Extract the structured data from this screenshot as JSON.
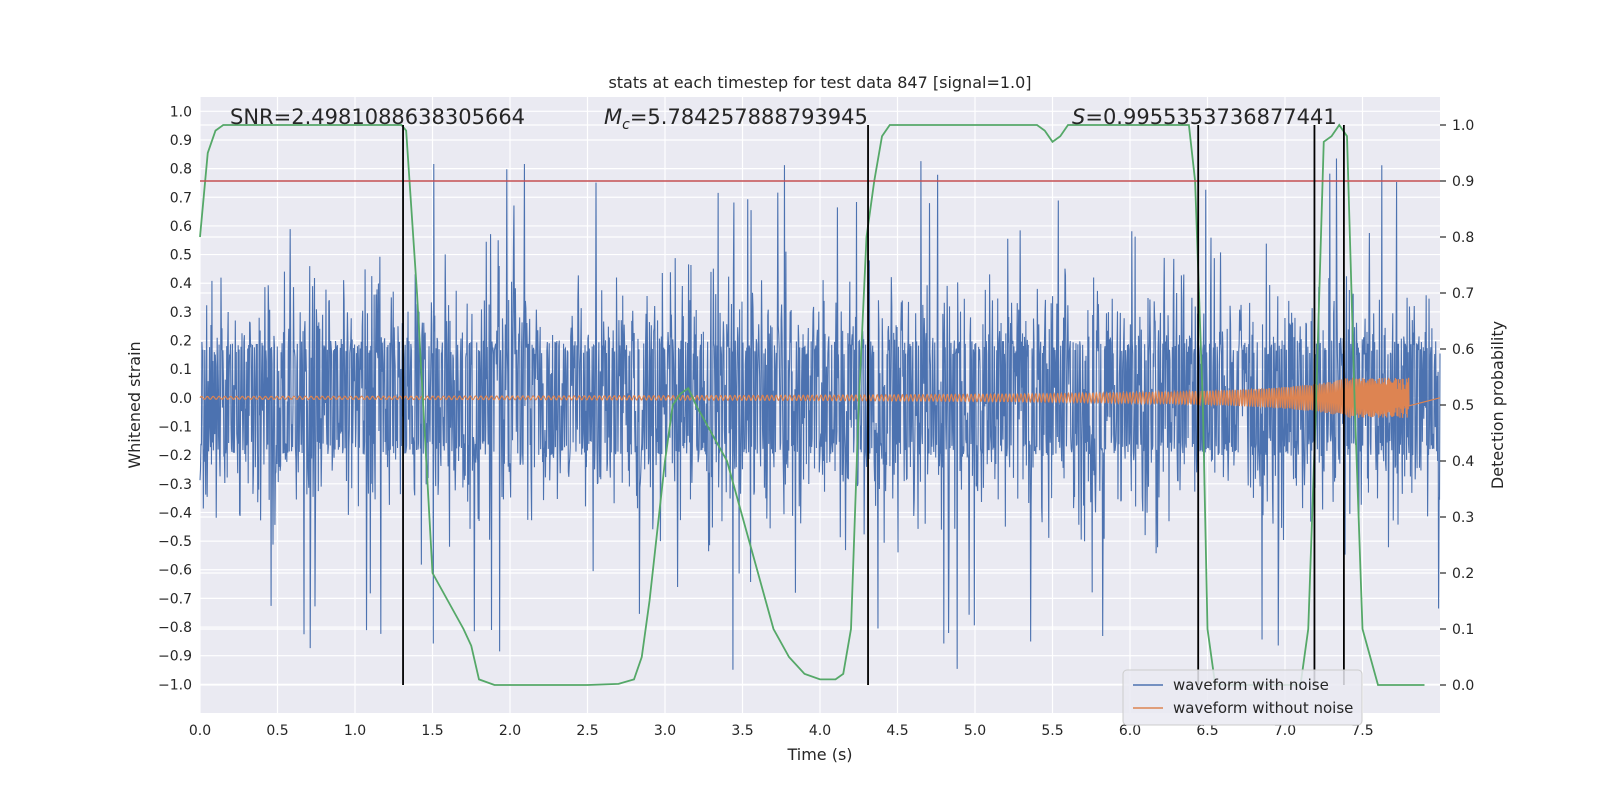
{
  "chart_data": {
    "type": "line",
    "title": "stats at each timestep for test data 847 [signal=1.0]",
    "xlabel": "Time (s)",
    "ylabel": "Whitened strain",
    "ylabel_right": "Detection probability",
    "xlim": [
      0.0,
      8.0
    ],
    "ylim": [
      -1.1,
      1.05
    ],
    "ylim_right": [
      -0.05,
      1.05
    ],
    "x_ticks": [
      0.0,
      0.5,
      1.0,
      1.5,
      2.0,
      2.5,
      3.0,
      3.5,
      4.0,
      4.5,
      5.0,
      5.5,
      6.0,
      6.5,
      7.0,
      7.5
    ],
    "x_tick_labels": [
      "0.0",
      "0.5",
      "1.0",
      "1.5",
      "2.0",
      "2.5",
      "3.0",
      "3.5",
      "4.0",
      "4.5",
      "5.0",
      "5.5",
      "6.0",
      "6.5",
      "7.0",
      "7.5"
    ],
    "y_ticks": [
      -1.0,
      -0.9,
      -0.8,
      -0.7,
      -0.6,
      -0.5,
      -0.4,
      -0.3,
      -0.2,
      -0.1,
      0.0,
      0.1,
      0.2,
      0.3,
      0.4,
      0.5,
      0.6,
      0.7,
      0.8,
      0.9,
      1.0
    ],
    "y_tick_labels": [
      "−1.0",
      "−0.9",
      "−0.8",
      "−0.7",
      "−0.6",
      "−0.5",
      "−0.4",
      "−0.3",
      "−0.2",
      "−0.1",
      "0.0",
      "0.1",
      "0.2",
      "0.3",
      "0.4",
      "0.5",
      "0.6",
      "0.7",
      "0.8",
      "0.9",
      "1.0"
    ],
    "y_ticks_right": [
      0.0,
      0.1,
      0.2,
      0.3,
      0.4,
      0.5,
      0.6,
      0.7,
      0.8,
      0.9,
      1.0
    ],
    "y_tick_labels_right": [
      "0.0",
      "0.1",
      "0.2",
      "0.3",
      "0.4",
      "0.5",
      "0.6",
      "0.7",
      "0.8",
      "0.9",
      "1.0"
    ],
    "grid": true,
    "legend_position": "lower-right",
    "series": [
      {
        "name": "waveform with noise",
        "color": "#4c72b0",
        "axis": "left",
        "style": "dense-noise",
        "x_range": [
          0.0,
          8.0
        ],
        "core_amplitude": 0.15,
        "typical_amplitude": 0.45,
        "peak_range": [
          -0.95,
          0.85
        ]
      },
      {
        "name": "waveform without noise",
        "color": "#dd8452",
        "axis": "left",
        "style": "chirp",
        "x_range": [
          0.0,
          7.8
        ],
        "start_amplitude": 0.005,
        "end_amplitude": 0.07
      },
      {
        "name": "",
        "color": "#55a868",
        "axis": "right",
        "style": "probability",
        "x": [
          0.0,
          0.05,
          0.1,
          0.15,
          0.2,
          0.3,
          0.5,
          0.8,
          1.0,
          1.2,
          1.3,
          1.33,
          1.4,
          1.5,
          1.6,
          1.7,
          1.75,
          1.8,
          1.9,
          2.0,
          2.2,
          2.5,
          2.7,
          2.8,
          2.85,
          2.9,
          3.0,
          3.05,
          3.1,
          3.15,
          3.2,
          3.3,
          3.4,
          3.5,
          3.6,
          3.7,
          3.8,
          3.9,
          4.0,
          4.1,
          4.15,
          4.2,
          4.25,
          4.3,
          4.35,
          4.4,
          4.45,
          4.5,
          4.7,
          5.0,
          5.3,
          5.4,
          5.45,
          5.5,
          5.55,
          5.6,
          5.7,
          6.0,
          6.3,
          6.38,
          6.42,
          6.47,
          6.5,
          6.55,
          6.6,
          6.7,
          6.8,
          6.9,
          7.0,
          7.1,
          7.15,
          7.2,
          7.25,
          7.3,
          7.35,
          7.4,
          7.45,
          7.5,
          7.6,
          7.9
        ],
        "values": [
          0.8,
          0.95,
          0.99,
          1.0,
          1.0,
          1.0,
          1.0,
          1.0,
          1.0,
          1.0,
          1.0,
          0.99,
          0.7,
          0.2,
          0.15,
          0.1,
          0.07,
          0.01,
          0.0,
          0.0,
          0.0,
          0.0,
          0.002,
          0.01,
          0.05,
          0.15,
          0.4,
          0.5,
          0.52,
          0.53,
          0.5,
          0.45,
          0.4,
          0.3,
          0.2,
          0.1,
          0.05,
          0.02,
          0.01,
          0.01,
          0.02,
          0.1,
          0.5,
          0.8,
          0.9,
          0.98,
          1.0,
          1.0,
          1.0,
          1.0,
          1.0,
          1.0,
          0.99,
          0.97,
          0.98,
          1.0,
          1.0,
          1.0,
          1.0,
          1.0,
          0.9,
          0.5,
          0.1,
          0.0,
          0.0,
          0.0,
          0.0,
          0.0,
          0.0,
          0.0,
          0.1,
          0.5,
          0.97,
          0.98,
          1.0,
          0.98,
          0.5,
          0.1,
          0.0,
          0.0
        ]
      }
    ],
    "threshold": {
      "value": 0.9,
      "axis": "right",
      "color": "#c44e52"
    },
    "vlines": {
      "x": [
        1.31,
        4.31,
        6.44,
        7.19,
        7.38
      ],
      "y_range": [
        0.0,
        1.0
      ],
      "axis": "right",
      "color": "#000000"
    },
    "annotations": [
      {
        "text": "SNR=2.4981088638305664",
        "x": 0.2
      },
      {
        "text_prefix": "M",
        "subscript": "c",
        "text_suffix": "=5.784257888793945",
        "x": 2.6
      },
      {
        "text_prefix": "S",
        "text_suffix": "=0.9955353736877441",
        "x": 5.6
      }
    ]
  },
  "colors": {
    "axes_bg": "#eaeaf2",
    "grid": "#ffffff",
    "text": "#262626"
  }
}
